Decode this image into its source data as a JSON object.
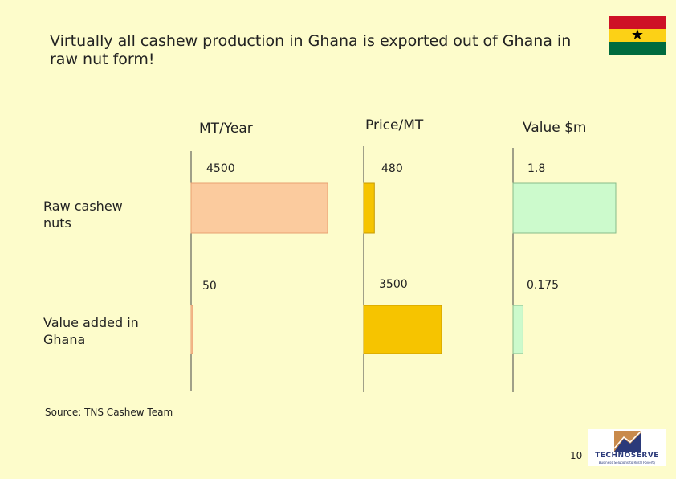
{
  "title": "Virtually all cashew production in Ghana is  exported out of Ghana in raw nut form!",
  "chart_data": {
    "type": "bar",
    "orientation": "horizontal",
    "categories": [
      "Raw cashew nuts",
      "Value added in Ghana"
    ],
    "series": [
      {
        "name": "MT/Year",
        "values": [
          4500,
          50
        ],
        "labels": [
          "4500",
          "50"
        ],
        "color": "#FBCB9E",
        "border": "#E8A070"
      },
      {
        "name": "Price/MT",
        "values": [
          480,
          3500
        ],
        "labels": [
          "480",
          "3500"
        ],
        "color": "#F6C400",
        "border": "#C89A00"
      },
      {
        "name": "Value $m",
        "values": [
          1.8,
          0.175
        ],
        "labels": [
          "1.8",
          "0.175"
        ],
        "color": "#CCFACC",
        "border": "#88BB88"
      }
    ],
    "source": "Source: TNS Cashew Team"
  },
  "page_number": "10",
  "logo": {
    "name": "TECHNOSERVE",
    "tagline": "Business Solutions to Rural Poverty"
  },
  "flag_colors": [
    "#CE1126",
    "#FCD116",
    "#006B3F"
  ]
}
